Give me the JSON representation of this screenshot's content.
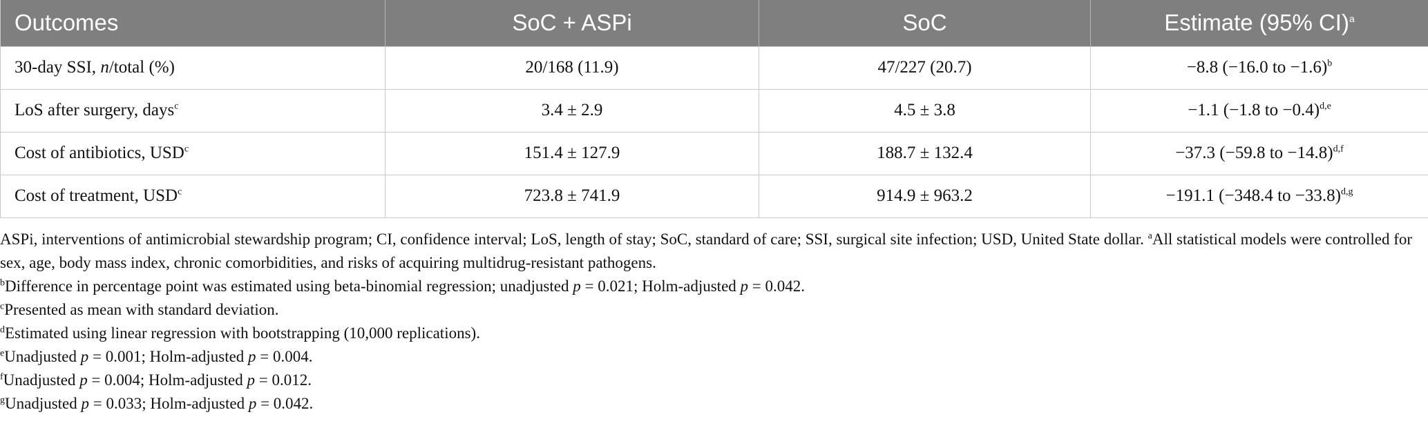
{
  "table": {
    "header": {
      "outcomes": "Outcomes",
      "soc_aspi": "SoC + ASPi",
      "soc": "SoC",
      "estimate": "Estimate (95% CI)",
      "estimate_sup": "a"
    },
    "rows": [
      {
        "label_pre": "30-day SSI, ",
        "label_ital": "n",
        "label_post": "/total (%)",
        "label_sup": "",
        "soc_aspi": "20/168 (11.9)",
        "soc": "47/227 (20.7)",
        "estimate": "−8.8 (−16.0 to −1.6)",
        "estimate_sup": "b"
      },
      {
        "label_pre": "LoS after surgery, days",
        "label_ital": "",
        "label_post": "",
        "label_sup": "c",
        "soc_aspi": "3.4 ± 2.9",
        "soc": "4.5 ± 3.8",
        "estimate": "−1.1 (−1.8 to −0.4)",
        "estimate_sup": "d,e"
      },
      {
        "label_pre": "Cost of antibiotics, USD",
        "label_ital": "",
        "label_post": "",
        "label_sup": "c",
        "soc_aspi": "151.4 ± 127.9",
        "soc": "188.7 ± 132.4",
        "estimate": "−37.3 (−59.8 to −14.8)",
        "estimate_sup": "d,f"
      },
      {
        "label_pre": "Cost of treatment, USD",
        "label_ital": "",
        "label_post": "",
        "label_sup": "c",
        "soc_aspi": "723.8 ± 741.9",
        "soc": "914.9 ± 963.2",
        "estimate": "−191.1 (−348.4 to −33.8)",
        "estimate_sup": "d,g"
      }
    ]
  },
  "footnotes": {
    "abbrev": "ASPi, interventions of antimicrobial stewardship program; CI, confidence interval; LoS, length of stay; SoC, standard of care; SSI, surgical site infection; USD, United State dollar. ",
    "a_mark": "a",
    "a_text": "All statistical models were controlled for sex, age, body mass index, chronic comorbidities, and risks of acquiring multidrug-resistant pathogens.",
    "b_mark": "b",
    "b_text1": "Difference in percentage point was estimated using beta-binomial regression; unadjusted ",
    "b_text2": " = 0.021; Holm-adjusted ",
    "b_text3": " = 0.042.",
    "c_mark": "c",
    "c_text": "Presented as mean with standard deviation.",
    "d_mark": "d",
    "d_text": "Estimated using linear regression with bootstrapping (10,000 replications).",
    "e_mark": "e",
    "e_text1": "Unadjusted ",
    "e_text2": " = 0.001; Holm-adjusted ",
    "e_text3": " = 0.004.",
    "f_mark": "f",
    "f_text1": "Unadjusted ",
    "f_text2": " = 0.004; Holm-adjusted ",
    "f_text3": " = 0.012.",
    "g_mark": "g",
    "g_text1": "Unadjusted ",
    "g_text2": " = 0.033; Holm-adjusted ",
    "g_text3": " = 0.042.",
    "p_symbol": "p"
  }
}
